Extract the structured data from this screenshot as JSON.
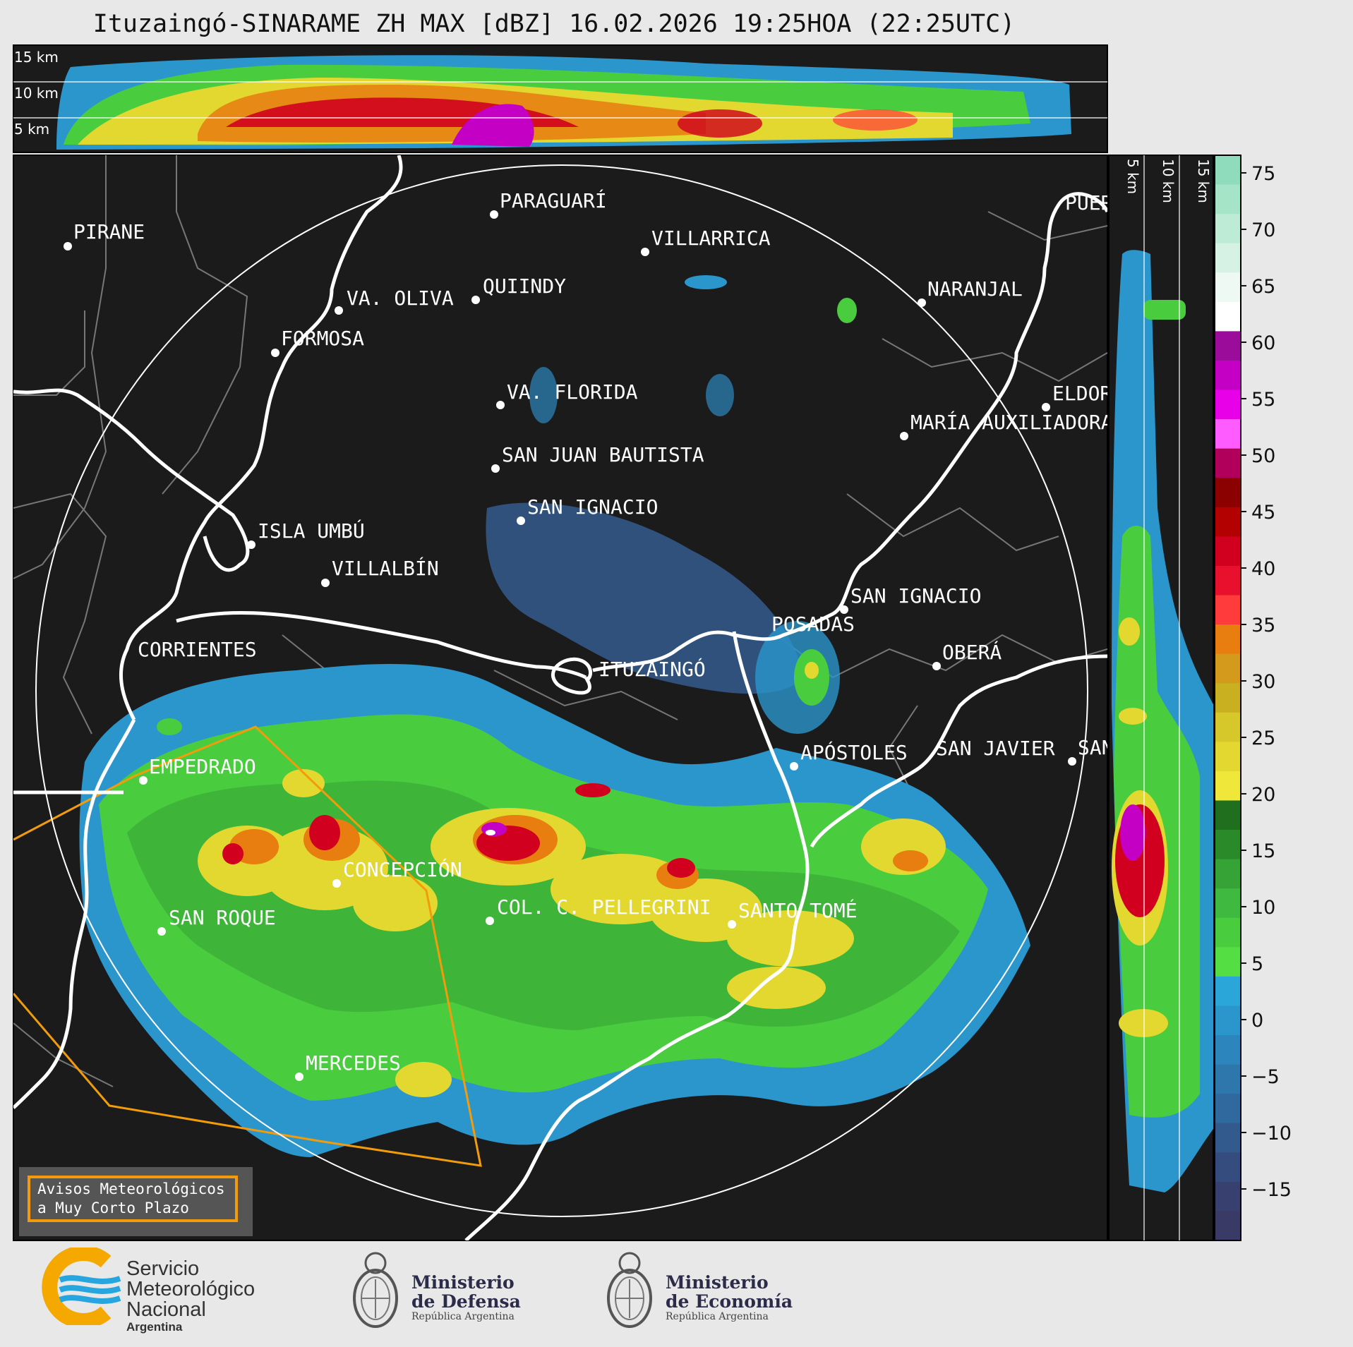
{
  "title": "Ituzaingó-SINARAME ZH MAX [dBZ] 16.02.2026 19:25HOA (22:25UTC)",
  "top_panel": {
    "levels": [
      "15 km",
      "10 km",
      "5 km"
    ]
  },
  "side_panel": {
    "levels": [
      "5 km",
      "10 km",
      "15 km"
    ]
  },
  "colorbar": {
    "unit": "dBZ",
    "ticks": [
      "75",
      "70",
      "65",
      "60",
      "55",
      "50",
      "45",
      "40",
      "35",
      "30",
      "25",
      "20",
      "15",
      "10",
      "5",
      "0",
      "−5",
      "−10",
      "−15"
    ],
    "colors": [
      "#8fdcbc",
      "#a6e4c8",
      "#bdebd6",
      "#d6f2e4",
      "#eef9f3",
      "#ffffff",
      "#9b0c9b",
      "#c400c4",
      "#e800e8",
      "#ff5cff",
      "#b0005c",
      "#8b0000",
      "#b30000",
      "#d0001e",
      "#e8102c",
      "#ff3b3b",
      "#e87d10",
      "#d49a1c",
      "#c8b020",
      "#d6c82a",
      "#e3d830",
      "#efe83a",
      "#1f6f1f",
      "#2a8a2a",
      "#35a335",
      "#3fb93f",
      "#4acc3f",
      "#55dd44",
      "#2aa6d8",
      "#2b96cc",
      "#2c86bd",
      "#2e77ad",
      "#30699d",
      "#335a8d",
      "#354d7e",
      "#37406e",
      "#3a3a66"
    ]
  },
  "places": [
    {
      "name": "PIRANE"
    },
    {
      "name": "PARAGUARÍ"
    },
    {
      "name": "VILLARRICA"
    },
    {
      "name": "QUIINDY"
    },
    {
      "name": "VA. OLIVA"
    },
    {
      "name": "FORMOSA"
    },
    {
      "name": "NARANJAL"
    },
    {
      "name": "VA. FLORIDA"
    },
    {
      "name": "ELDORADO"
    },
    {
      "name": "MARÍA AUXILIADORA"
    },
    {
      "name": "SAN JUAN BAUTISTA"
    },
    {
      "name": "SAN IGNACIO"
    },
    {
      "name": "ISLA UMBÚ"
    },
    {
      "name": "VILLALBÍN"
    },
    {
      "name": "SAN IGNACIO"
    },
    {
      "name": "POSADAS"
    },
    {
      "name": "CORRIENTES"
    },
    {
      "name": "ITUZAINGÓ"
    },
    {
      "name": "OBERÁ"
    },
    {
      "name": "EMPEDRADO"
    },
    {
      "name": "APÓSTOLES"
    },
    {
      "name": "SAN JAVIER"
    },
    {
      "name": "SAN JAVIER"
    },
    {
      "name": "CONCEPCIÓN"
    },
    {
      "name": "COL. C. PELLEGRINI"
    },
    {
      "name": "SANTO TOMÉ"
    },
    {
      "name": "SAN ROQUE"
    },
    {
      "name": "MERCEDES"
    },
    {
      "name": "PUERTO"
    }
  ],
  "warning_box": {
    "line1": "Avisos Meteorológicos",
    "line2": "a Muy Corto Plazo"
  },
  "footer": {
    "smn": {
      "line1": "Servicio",
      "line2": "Meteorológico",
      "line3": "Nacional",
      "line4": "Argentina"
    },
    "defensa": {
      "line1": "Ministerio",
      "line2": "de Defensa",
      "line3": "República Argentina"
    },
    "economia": {
      "line1": "Ministerio",
      "line2": "de Economía",
      "line3": "República Argentina"
    }
  }
}
